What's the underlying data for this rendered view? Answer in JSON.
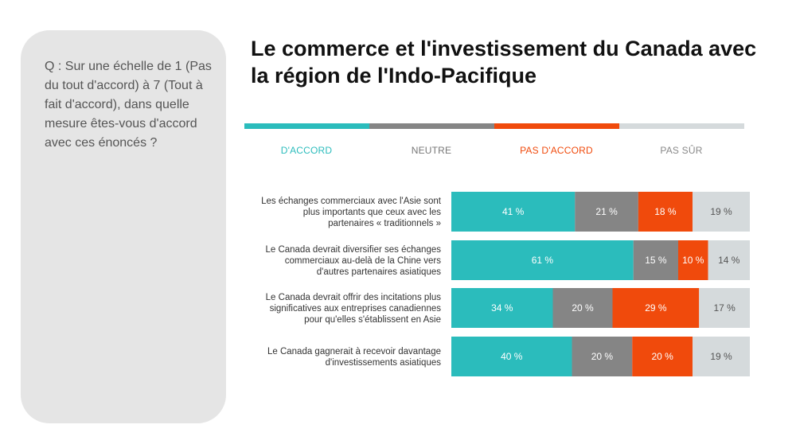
{
  "question": "Q : Sur une échelle de 1 (Pas du tout d'accord) à 7 (Tout à fait d'accord), dans quelle mesure êtes-vous d'accord avec ces énoncés ?",
  "title": "Le commerce et l'investissement du Canada avec la région de l'Indo-Pacifique",
  "chart_data": {
    "type": "bar",
    "orientation": "horizontal",
    "stacked": "100%",
    "value_format": "percent",
    "legend_placement": "top",
    "grid": false,
    "categories": [
      "Les échanges commerciaux avec l'Asie sont plus importants que ceux avec les partenaires « traditionnels »",
      "Le Canada devrait diversifier ses échanges commerciaux au-delà de la Chine vers d'autres partenaires asiatiques",
      "Le Canada devrait offrir des incitations plus significatives aux entreprises canadiennes pour qu'elles s'établissent en Asie",
      "Le Canada gagnerait à recevoir davantage d'investissements asiatiques"
    ],
    "category_lines": [
      [
        "Les échanges commerciaux avec l'Asie sont",
        "plus importants que ceux avec les",
        "partenaires « traditionnels »"
      ],
      [
        "Le Canada devrait diversifier ses échanges",
        "commerciaux au-delà de la Chine vers",
        "d'autres partenaires asiatiques"
      ],
      [
        "Le Canada devrait offrir des incitations plus",
        "significatives aux entreprises canadiennes",
        "pour qu'elles s'établissent en Asie"
      ],
      [
        "Le Canada gagnerait à recevoir davantage",
        "d'investissements asiatiques"
      ]
    ],
    "series": [
      {
        "name": "D'ACCORD",
        "color": "#2bbcbc",
        "label_color": "#ffffff",
        "values": [
          41,
          61,
          34,
          40
        ],
        "labels": [
          "41 %",
          "61 %",
          "34 %",
          "40 %"
        ]
      },
      {
        "name": "NEUTRE",
        "color": "#858585",
        "label_color": "#ffffff",
        "values": [
          21,
          15,
          20,
          20
        ],
        "labels": [
          "21 %",
          "15 %",
          "20 %",
          "20 %"
        ]
      },
      {
        "name": "PAS D'ACCORD",
        "color": "#f04a0c",
        "label_color": "#ffffff",
        "values": [
          18,
          10,
          29,
          20
        ],
        "labels": [
          "18 %",
          "10 %",
          "29 %",
          "20 %"
        ]
      },
      {
        "name": "PAS SÛR",
        "color": "#d5dadc",
        "label_color": "#555555",
        "values": [
          19,
          14,
          17,
          19
        ],
        "labels": [
          "19 %",
          "14 %",
          "17 %",
          "19 %"
        ]
      }
    ]
  }
}
